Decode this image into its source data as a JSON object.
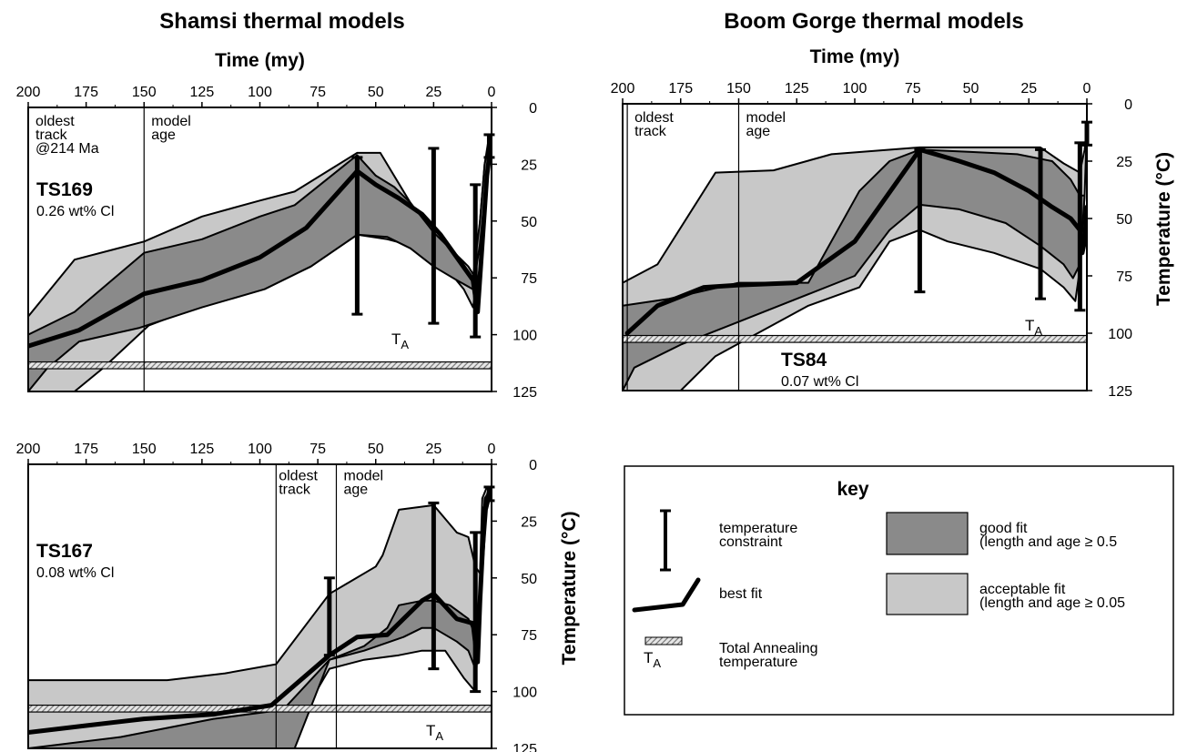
{
  "titles": {
    "left": "Shamsi thermal models",
    "right": "Boom Gorge thermal models"
  },
  "colors": {
    "good_fit": "#8a8a8a",
    "acceptable_fit": "#c8c8c8",
    "line": "#000000",
    "annealing_band": "#bdbdbd"
  },
  "chart_data": [
    {
      "id": "ts169",
      "type": "area",
      "top_xlabel": "Time (my)",
      "ylabel": "",
      "xlim": [
        200,
        0
      ],
      "ylim": [
        0,
        125
      ],
      "xticks": [
        200,
        175,
        150,
        125,
        100,
        75,
        50,
        25,
        0
      ],
      "yticks": [
        0,
        25,
        50,
        75,
        100,
        125
      ],
      "sample": "TS169",
      "cl": "0.26 wt% Cl",
      "ta_label": "T",
      "ta_sub": "A",
      "ta_range": [
        112,
        115
      ],
      "annotations": [
        {
          "x": 200,
          "y": 8,
          "anchor": "start",
          "lines": [
            "oldest",
            "track",
            "@214 Ma"
          ]
        },
        {
          "x": 150,
          "y": 8,
          "anchor": "start",
          "lines": [
            "model",
            "age"
          ]
        }
      ],
      "vlines": [
        150
      ],
      "acceptable": [
        [
          200,
          92
        ],
        [
          180,
          67
        ],
        [
          150,
          59
        ],
        [
          125,
          48
        ],
        [
          100,
          41
        ],
        [
          85,
          37
        ],
        [
          58,
          20
        ],
        [
          48,
          20
        ],
        [
          35,
          42
        ],
        [
          25,
          58
        ],
        [
          15,
          65
        ],
        [
          10,
          70
        ],
        [
          7,
          75
        ],
        [
          5,
          50
        ],
        [
          3,
          25
        ],
        [
          1,
          12
        ],
        [
          0,
          12
        ],
        [
          1,
          20
        ],
        [
          3,
          43
        ],
        [
          5,
          70
        ],
        [
          8,
          88
        ],
        [
          12,
          80
        ],
        [
          20,
          70
        ],
        [
          30,
          62
        ],
        [
          45,
          58
        ],
        [
          58,
          56
        ],
        [
          78,
          70
        ],
        [
          95,
          78
        ],
        [
          125,
          87
        ],
        [
          148,
          96
        ],
        [
          168,
          115
        ],
        [
          180,
          125
        ],
        [
          200,
          125
        ]
      ],
      "good": [
        [
          200,
          100
        ],
        [
          180,
          90
        ],
        [
          150,
          64
        ],
        [
          125,
          58
        ],
        [
          100,
          48
        ],
        [
          85,
          43
        ],
        [
          58,
          21
        ],
        [
          50,
          30
        ],
        [
          42,
          35
        ],
        [
          35,
          42
        ],
        [
          25,
          55
        ],
        [
          15,
          65
        ],
        [
          8,
          75
        ],
        [
          5,
          50
        ],
        [
          3,
          25
        ],
        [
          1,
          15
        ],
        [
          0,
          14
        ],
        [
          1,
          22
        ],
        [
          3,
          40
        ],
        [
          5,
          60
        ],
        [
          8,
          80
        ],
        [
          15,
          76
        ],
        [
          25,
          70
        ],
        [
          35,
          62
        ],
        [
          45,
          57
        ],
        [
          58,
          56
        ],
        [
          78,
          70
        ],
        [
          98,
          80
        ],
        [
          125,
          88
        ],
        [
          152,
          97
        ],
        [
          178,
          103
        ],
        [
          192,
          115
        ],
        [
          200,
          125
        ]
      ],
      "best_fit": [
        [
          200,
          105
        ],
        [
          178,
          98
        ],
        [
          150,
          82
        ],
        [
          125,
          76
        ],
        [
          100,
          66
        ],
        [
          80,
          53
        ],
        [
          58,
          28
        ],
        [
          50,
          34
        ],
        [
          40,
          40
        ],
        [
          30,
          47
        ],
        [
          22,
          56
        ],
        [
          15,
          66
        ],
        [
          8,
          76
        ],
        [
          6,
          90
        ],
        [
          4,
          60
        ],
        [
          2,
          30
        ],
        [
          0,
          14
        ]
      ],
      "constraints": [
        {
          "x": 58,
          "y1": 22,
          "y2": 91
        },
        {
          "x": 25,
          "y1": 18,
          "y2": 95
        },
        {
          "x": 7,
          "y1": 34,
          "y2": 101
        },
        {
          "x": 1,
          "y1": 12,
          "y2": 22
        }
      ]
    },
    {
      "id": "ts84",
      "type": "area",
      "top_xlabel": "Time (my)",
      "ylabel": "Temperature (°C)",
      "xlim": [
        200,
        0
      ],
      "ylim": [
        0,
        125
      ],
      "xticks": [
        200,
        175,
        150,
        125,
        100,
        75,
        50,
        25,
        0
      ],
      "yticks": [
        0,
        25,
        50,
        75,
        100,
        125
      ],
      "sample": "TS84",
      "cl": "0.07 wt% Cl",
      "ta_label": "T",
      "ta_sub": "A",
      "ta_range": [
        101,
        104
      ],
      "annotations": [
        {
          "x": 198,
          "y": 8,
          "anchor": "start",
          "lines": [
            "oldest",
            "track"
          ]
        },
        {
          "x": 150,
          "y": 8,
          "anchor": "start",
          "lines": [
            "model",
            "age"
          ]
        }
      ],
      "vlines": [
        198,
        150
      ],
      "acceptable": [
        [
          200,
          78
        ],
        [
          185,
          70
        ],
        [
          160,
          30
        ],
        [
          135,
          29
        ],
        [
          110,
          22
        ],
        [
          72,
          19
        ],
        [
          20,
          19
        ],
        [
          10,
          26
        ],
        [
          3,
          30
        ],
        [
          1,
          20
        ],
        [
          0,
          10
        ],
        [
          1,
          40
        ],
        [
          3,
          72
        ],
        [
          5,
          86
        ],
        [
          10,
          80
        ],
        [
          20,
          72
        ],
        [
          40,
          65
        ],
        [
          60,
          60
        ],
        [
          72,
          55
        ],
        [
          85,
          60
        ],
        [
          98,
          80
        ],
        [
          120,
          88
        ],
        [
          160,
          110
        ],
        [
          175,
          125
        ],
        [
          200,
          125
        ]
      ],
      "good": [
        [
          200,
          88
        ],
        [
          180,
          85
        ],
        [
          150,
          78
        ],
        [
          120,
          78
        ],
        [
          98,
          38
        ],
        [
          85,
          25
        ],
        [
          72,
          20
        ],
        [
          50,
          21
        ],
        [
          30,
          22
        ],
        [
          15,
          25
        ],
        [
          7,
          33
        ],
        [
          3,
          40
        ],
        [
          1,
          40
        ],
        [
          3,
          70
        ],
        [
          6,
          76
        ],
        [
          10,
          70
        ],
        [
          20,
          62
        ],
        [
          35,
          52
        ],
        [
          55,
          46
        ],
        [
          72,
          44
        ],
        [
          85,
          55
        ],
        [
          100,
          75
        ],
        [
          125,
          85
        ],
        [
          150,
          95
        ],
        [
          175,
          105
        ],
        [
          195,
          115
        ],
        [
          200,
          125
        ]
      ],
      "best_fit": [
        [
          198,
          100
        ],
        [
          185,
          88
        ],
        [
          165,
          80
        ],
        [
          150,
          79
        ],
        [
          125,
          78
        ],
        [
          100,
          60
        ],
        [
          72,
          20
        ],
        [
          55,
          25
        ],
        [
          40,
          30
        ],
        [
          25,
          38
        ],
        [
          15,
          45
        ],
        [
          7,
          50
        ],
        [
          3,
          55
        ],
        [
          2,
          65
        ],
        [
          1,
          60
        ],
        [
          0,
          45
        ]
      ],
      "constraints": [
        {
          "x": 72,
          "y1": 20,
          "y2": 82
        },
        {
          "x": 20,
          "y1": 20,
          "y2": 85
        },
        {
          "x": 3,
          "y1": 17,
          "y2": 90
        },
        {
          "x": 0,
          "y1": 8,
          "y2": 18
        }
      ]
    },
    {
      "id": "ts167",
      "type": "area",
      "top_xlabel": "",
      "ylabel": "Temperature (°C)",
      "xlim": [
        200,
        0
      ],
      "ylim": [
        0,
        125
      ],
      "xticks": [
        200,
        175,
        150,
        125,
        100,
        75,
        50,
        25,
        0
      ],
      "yticks": [
        0,
        25,
        50,
        75,
        100,
        125
      ],
      "sample": "TS167",
      "cl": "0.08 wt% Cl",
      "ta_label": "T",
      "ta_sub": "A",
      "ta_range": [
        106,
        109
      ],
      "annotations": [
        {
          "x": 95,
          "y": 7,
          "anchor": "start",
          "lines": [
            "oldest",
            "track"
          ]
        },
        {
          "x": 67,
          "y": 7,
          "anchor": "start",
          "lines": [
            "model",
            "age"
          ]
        }
      ],
      "vlines": [
        93,
        67
      ],
      "acceptable": [
        [
          200,
          95
        ],
        [
          175,
          95
        ],
        [
          140,
          95
        ],
        [
          115,
          92
        ],
        [
          93,
          88
        ],
        [
          70,
          57
        ],
        [
          50,
          45
        ],
        [
          47,
          40
        ],
        [
          40,
          20
        ],
        [
          25,
          18
        ],
        [
          15,
          30
        ],
        [
          10,
          32
        ],
        [
          7,
          45
        ],
        [
          5,
          48
        ],
        [
          4,
          15
        ],
        [
          2,
          10
        ],
        [
          0,
          10
        ],
        [
          2,
          15
        ],
        [
          5,
          60
        ],
        [
          7,
          100
        ],
        [
          12,
          94
        ],
        [
          20,
          82
        ],
        [
          30,
          82
        ],
        [
          40,
          84
        ],
        [
          55,
          86
        ],
        [
          70,
          90
        ],
        [
          90,
          125
        ],
        [
          200,
          125
        ]
      ],
      "good": [
        [
          200,
          125
        ],
        [
          160,
          120
        ],
        [
          120,
          112
        ],
        [
          90,
          108
        ],
        [
          70,
          86
        ],
        [
          55,
          80
        ],
        [
          45,
          72
        ],
        [
          40,
          62
        ],
        [
          30,
          60
        ],
        [
          25,
          60
        ],
        [
          18,
          62
        ],
        [
          10,
          68
        ],
        [
          7,
          75
        ],
        [
          5,
          55
        ],
        [
          3,
          15
        ],
        [
          1,
          12
        ],
        [
          0,
          12
        ],
        [
          2,
          20
        ],
        [
          5,
          60
        ],
        [
          7,
          90
        ],
        [
          10,
          82
        ],
        [
          15,
          78
        ],
        [
          25,
          72
        ],
        [
          30,
          72
        ],
        [
          38,
          76
        ],
        [
          55,
          82
        ],
        [
          70,
          86
        ],
        [
          85,
          125
        ]
      ],
      "best_fit": [
        [
          200,
          118
        ],
        [
          175,
          115
        ],
        [
          150,
          112
        ],
        [
          120,
          110
        ],
        [
          95,
          106
        ],
        [
          70,
          84
        ],
        [
          58,
          76
        ],
        [
          45,
          75
        ],
        [
          30,
          60
        ],
        [
          25,
          57
        ],
        [
          15,
          68
        ],
        [
          8,
          70
        ],
        [
          6,
          87
        ],
        [
          5,
          60
        ],
        [
          3,
          20
        ],
        [
          1,
          12
        ],
        [
          0,
          12
        ]
      ],
      "constraints": [
        {
          "x": 70,
          "y1": 50,
          "y2": 84
        },
        {
          "x": 25,
          "y1": 17,
          "y2": 90
        },
        {
          "x": 7,
          "y1": 30,
          "y2": 100
        },
        {
          "x": 1,
          "y1": 10,
          "y2": 16
        }
      ]
    }
  ],
  "key": {
    "title": "key",
    "constraint_label": [
      "temperature",
      "constraint"
    ],
    "best_fit_label": "best fit",
    "ta_symbol": "T",
    "ta_symbol_sub": "A",
    "ta_label": [
      "Total Annealing",
      "temperature"
    ],
    "good_fit_label": [
      "good fit",
      "(length and age ≥ 0.5"
    ],
    "acceptable_fit_label": [
      "acceptable fit",
      "(length and age ≥ 0.05"
    ]
  }
}
